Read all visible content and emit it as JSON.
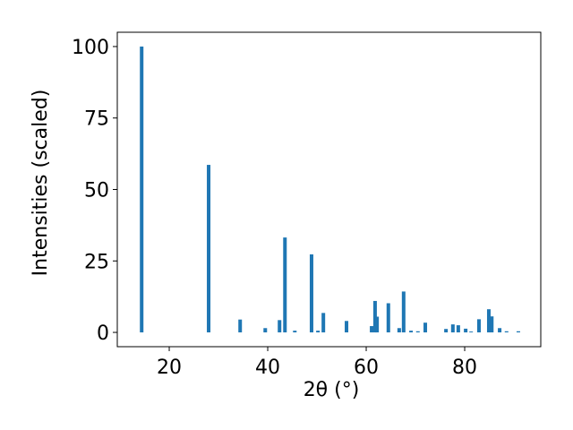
{
  "chart_data": {
    "type": "bar",
    "x_label": "2θ (°)",
    "y_label": "Intensities (scaled)",
    "x": [
      14.4,
      28.0,
      34.4,
      39.5,
      42.4,
      43.5,
      45.5,
      48.9,
      50.2,
      51.3,
      56.0,
      61.1,
      61.8,
      62.2,
      64.5,
      66.7,
      67.6,
      69.1,
      70.5,
      72.0,
      76.2,
      77.6,
      78.7,
      80.2,
      81.3,
      82.9,
      84.9,
      85.5,
      87.1,
      88.5,
      90.9
    ],
    "values": [
      100,
      58.6,
      4.5,
      1.5,
      4.3,
      33.2,
      0.6,
      27.3,
      0.6,
      6.8,
      4.0,
      2.2,
      11.0,
      5.5,
      10.2,
      1.5,
      14.3,
      0.6,
      0.4,
      3.4,
      1.2,
      2.8,
      2.5,
      1.3,
      0.3,
      4.6,
      8.1,
      5.6,
      1.5,
      0.4,
      0.4
    ],
    "color": "#1f77b4",
    "xlim": [
      9.45,
      95.45
    ],
    "ylim": [
      -5,
      105
    ],
    "xticks": [
      20,
      40,
      60,
      80
    ],
    "yticks": [
      0,
      25,
      50,
      75,
      100
    ]
  }
}
